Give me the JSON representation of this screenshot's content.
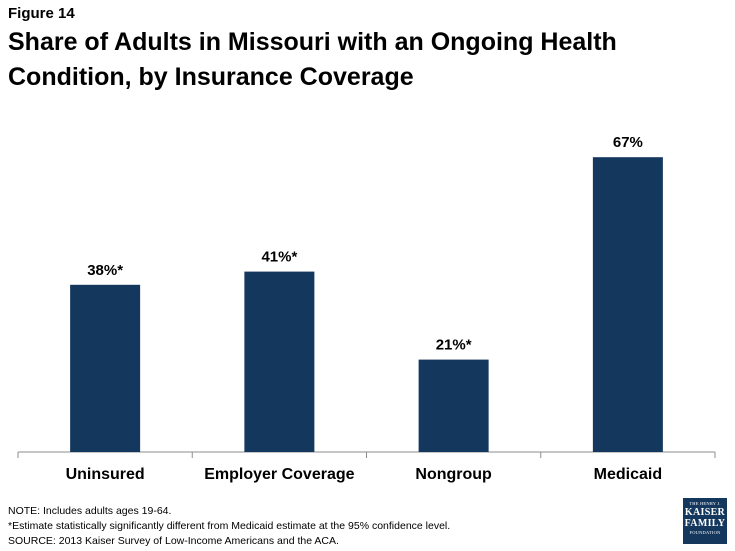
{
  "figure_label": "Figure 14",
  "title": "Share of Adults in Missouri with an Ongoing Health Condition, by Insurance Coverage",
  "chart_data": {
    "type": "bar",
    "categories": [
      "Uninsured",
      "Employer Coverage",
      "Nongroup",
      "Medicaid"
    ],
    "values": [
      38,
      41,
      21,
      67
    ],
    "data_labels": [
      "38%*",
      "41%*",
      "21%*",
      "67%"
    ],
    "color": "#14375e",
    "ylim": [
      0,
      80
    ],
    "grid": false
  },
  "notes": [
    "NOTE: Includes adults ages 19-64.",
    "*Estimate statistically significantly different from Medicaid estimate at the 95% confidence level.",
    "SOURCE: 2013 Kaiser Survey of Low-Income Americans and the ACA."
  ],
  "logo": {
    "top_line": "THE HENRY J.",
    "line1": "KAISER",
    "line2": "FAMILY",
    "bottom_line": "FOUNDATION"
  }
}
